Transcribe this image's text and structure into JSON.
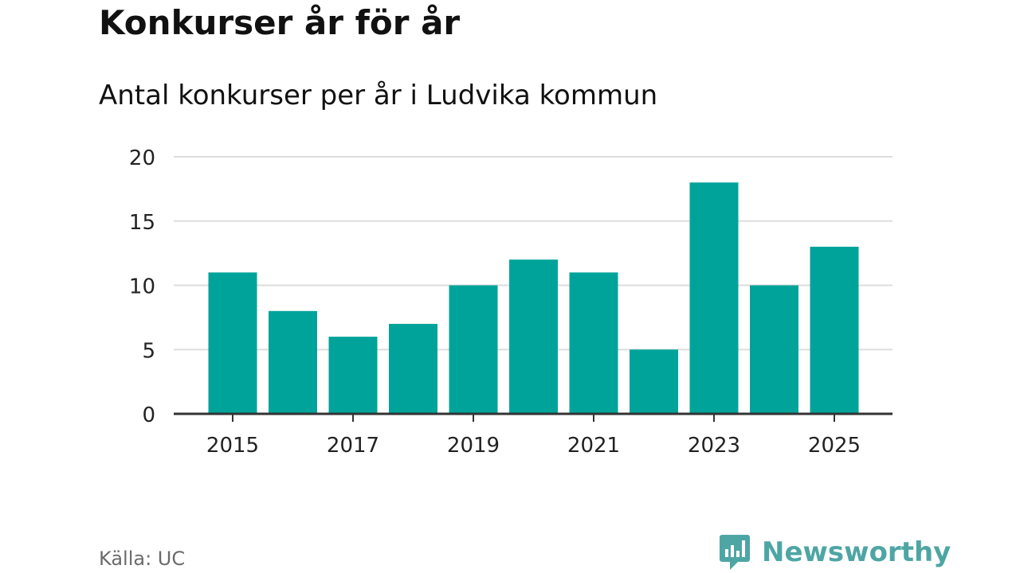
{
  "title": "Konkurser år för år",
  "subtitle": "Antal konkurser per år i Ludvika kommun",
  "source": "Källa: UC",
  "brand": {
    "name": "Newsworthy",
    "icon": "newsworthy-logo-icon"
  },
  "colors": {
    "bar": "#00a39a",
    "brand": "#4ea6a4",
    "grid": "#dddddd",
    "axis": "#333333"
  },
  "chart_data": {
    "type": "bar",
    "title": "Konkurser år för år",
    "subtitle": "Antal konkurser per år i Ludvika kommun",
    "categories": [
      "2015",
      "2016",
      "2017",
      "2018",
      "2019",
      "2020",
      "2021",
      "2022",
      "2023",
      "2024",
      "2025"
    ],
    "values": [
      11,
      8,
      6,
      7,
      10,
      12,
      11,
      5,
      18,
      10,
      13
    ],
    "x_tick_labels": [
      "2015",
      "2017",
      "2019",
      "2021",
      "2023",
      "2025"
    ],
    "y_ticks": [
      0,
      5,
      10,
      15,
      20
    ],
    "ylim": [
      0,
      20
    ],
    "xlabel": "",
    "ylabel": "",
    "grid": true,
    "legend": "none"
  }
}
